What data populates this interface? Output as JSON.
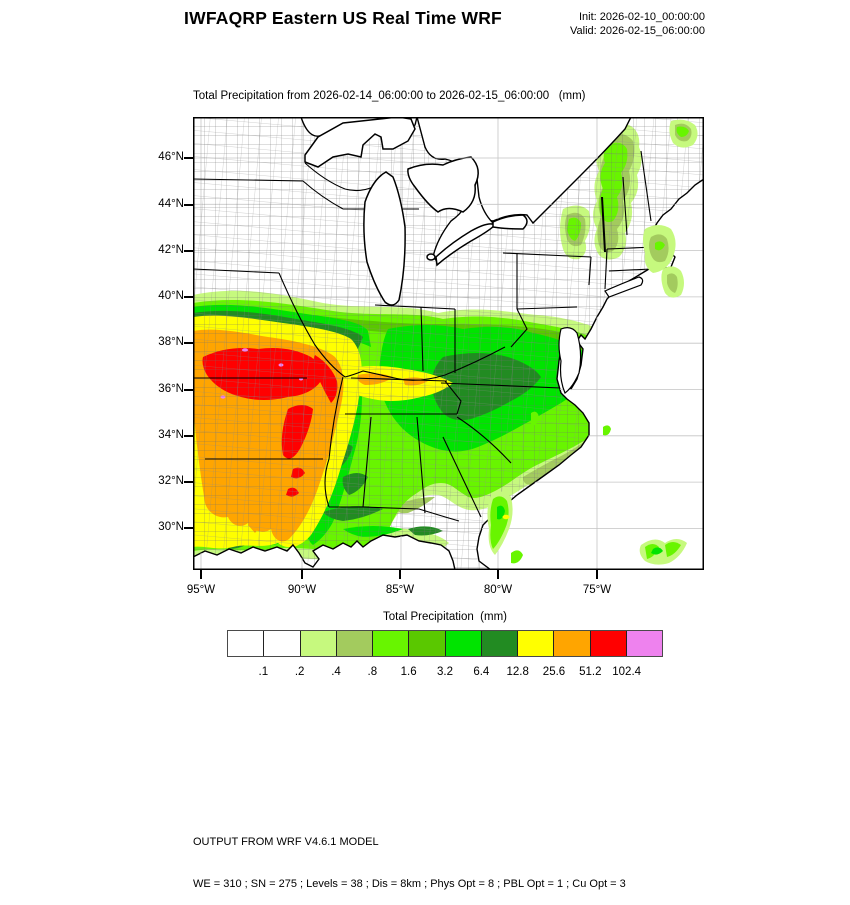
{
  "header": {
    "title": "IWFAQRP Eastern US Real Time WRF",
    "init_label": "Init: 2026-02-10_00:00:00",
    "valid_label": "Valid: 2026-02-15_06:00:00"
  },
  "map": {
    "subtitle": "Total Precipitation from 2026-02-14_06:00:00 to 2026-02-15_06:00:00   (mm)",
    "lat_labels": [
      "46°N",
      "44°N",
      "42°N",
      "40°N",
      "38°N",
      "36°N",
      "34°N",
      "32°N",
      "30°N"
    ],
    "lon_labels": [
      "95°W",
      "90°W",
      "85°W",
      "80°W",
      "75°W"
    ]
  },
  "colorbar": {
    "title": "Total Precipitation  (mm)",
    "tick_labels": [
      ".1",
      ".2",
      ".4",
      ".8",
      "1.6",
      "3.2",
      "6.4",
      "12.8",
      "25.6",
      "51.2",
      "102.4"
    ],
    "colors": [
      "#ffffff",
      "#ffffff",
      "#c6f97e",
      "#a3cb5e",
      "#68f500",
      "#5ac800",
      "#00e400",
      "#228b22",
      "#ffff00",
      "#ffa500",
      "#ff0000",
      "#ee82ee"
    ]
  },
  "footer": {
    "line1": "OUTPUT FROM WRF V4.6.1 MODEL",
    "line2": "WE = 310 ; SN = 275 ; Levels = 38 ; Dis = 8km ; Phys Opt = 8 ; PBL Opt = 1 ; Cu Opt = 3"
  },
  "chart_data": {
    "type": "heatmap",
    "title": "IWFAQRP Eastern US Real Time WRF",
    "subtitle": "Total Precipitation from 2026-02-14_06:00:00 to 2026-02-15_06:00:00 (mm)",
    "colorbar_title": "Total Precipitation (mm)",
    "init_time": "2026-02-10_00:00:00",
    "valid_time": "2026-02-15_06:00:00",
    "levels_mm": [
      0.1,
      0.2,
      0.4,
      0.8,
      1.6,
      3.2,
      6.4,
      12.8,
      25.6,
      51.2,
      102.4
    ],
    "level_colors": [
      "#ffffff",
      "#ffffff",
      "#c6f97e",
      "#a3cb5e",
      "#68f500",
      "#5ac800",
      "#00e400",
      "#228b22",
      "#ffff00",
      "#ffa500",
      "#ff0000",
      "#ee82ee"
    ],
    "x_axis": {
      "ticks": [
        "95°W",
        "90°W",
        "85°W",
        "80°W",
        "75°W"
      ],
      "range_deg_west": [
        95.5,
        70.0
      ]
    },
    "y_axis": {
      "ticks": [
        "46°N",
        "44°N",
        "42°N",
        "40°N",
        "38°N",
        "36°N",
        "34°N",
        "32°N",
        "30°N"
      ],
      "range_deg_north": [
        28.2,
        47.8
      ]
    },
    "grid": true,
    "legend_position": "bottom",
    "features": [
      {
        "region": "southern Missouri / northern Arkansas",
        "value_mm": "51.2-102.4",
        "color": "red with violet specks >102.4"
      },
      {
        "region": "Arkansas / Louisiana / west Mississippi",
        "value_mm": "25.6-51.2",
        "color": "orange"
      },
      {
        "region": "ring around core and tongue into middle Tennessee",
        "value_mm": "12.8-25.6",
        "color": "yellow"
      },
      {
        "region": "Kentucky / Tennessee / Appalachians",
        "value_mm": "1.6-12.8",
        "color": "greens with dark-green 6.4-12.8 core"
      },
      {
        "region": "Carolinas piedmont fringe",
        "value_mm": "0.2-0.8",
        "color": "pale green"
      },
      {
        "region": "upstate New York / Vermont / New Hampshire / Cape Cod",
        "value_mm": "0.2-1.6",
        "color": "pale and bright green patches"
      },
      {
        "region": "offshore Atlantic streaks",
        "value_mm": "0.2-1.6",
        "color": "small green flecks"
      }
    ]
  }
}
